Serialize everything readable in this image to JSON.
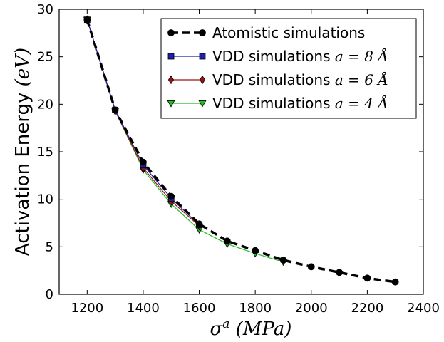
{
  "chart_data": {
    "type": "line",
    "xlabel": "σ^a (MPa)",
    "ylabel": "Activation Energy (eV)",
    "xlim": [
      1100,
      2400
    ],
    "ylim": [
      0,
      30
    ],
    "xticks": [
      "1200",
      "1400",
      "1600",
      "1800",
      "2000",
      "2200",
      "2400"
    ],
    "yticks": [
      "0",
      "5",
      "10",
      "15",
      "20",
      "25",
      "30"
    ],
    "legend_position": "top-right",
    "series": [
      {
        "name": "Atomistic simulations",
        "color": "#000000",
        "marker": "circle",
        "dashed": true,
        "x": [
          1200,
          1300,
          1400,
          1500,
          1600,
          1700,
          1800,
          1900,
          2000,
          2100,
          2200,
          2300
        ],
        "y": [
          28.9,
          19.4,
          13.9,
          10.3,
          7.4,
          5.6,
          4.6,
          3.6,
          2.9,
          2.3,
          1.7,
          1.3
        ]
      },
      {
        "name": "VDD simulations a = 8 Å",
        "color": "#1f1fb4",
        "marker": "square",
        "dashed": false,
        "x": [
          1200,
          1300,
          1400,
          1500,
          1600
        ],
        "y": [
          28.9,
          19.4,
          13.6,
          10.1,
          7.3
        ]
      },
      {
        "name": "VDD simulations a = 6 Å",
        "color": "#a01010",
        "marker": "diamond",
        "dashed": false,
        "x": [
          1200,
          1300,
          1400,
          1500,
          1600
        ],
        "y": [
          28.9,
          19.3,
          13.3,
          9.8,
          7.2
        ]
      },
      {
        "name": "VDD simulations a = 4 Å",
        "color": "#22bb22",
        "marker": "triangle-down",
        "dashed": false,
        "x": [
          1200,
          1300,
          1400,
          1500,
          1600,
          1700,
          1800,
          1900
        ],
        "y": [
          28.9,
          19.3,
          13.1,
          9.5,
          6.8,
          5.3,
          4.3,
          3.4
        ]
      }
    ]
  }
}
